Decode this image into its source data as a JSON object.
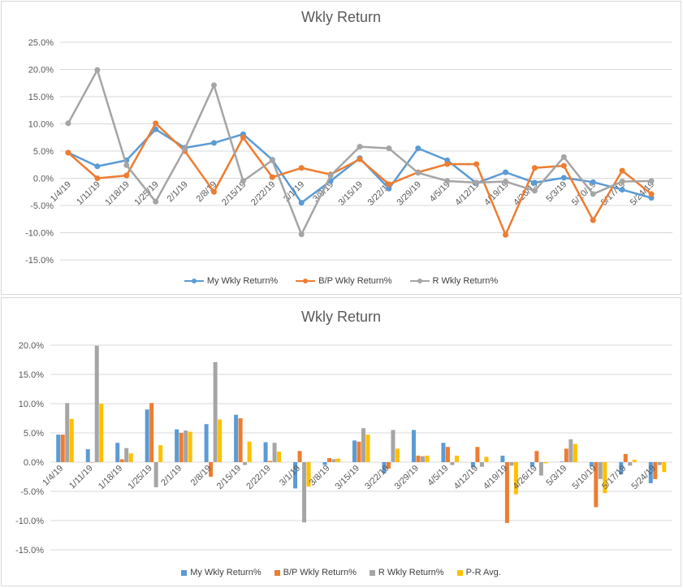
{
  "colors": {
    "my": "#5b9bd5",
    "bp": "#ed7d31",
    "r": "#a5a5a5",
    "pr": "#ffc000",
    "grid": "#d9d9d9",
    "axisText": "#595959"
  },
  "chart_data": [
    {
      "type": "line",
      "title": "Wkly Return",
      "xlabel": "",
      "ylabel": "",
      "ylim": [
        -15,
        25
      ],
      "ytick_labels": [
        "25.0%",
        "20.0%",
        "15.0%",
        "10.0%",
        "5.0%",
        "0.0%",
        "-5.0%",
        "-10.0%",
        "-15.0%"
      ],
      "grid": true,
      "legend_position": "bottom",
      "categories": [
        "1/4/19",
        "1/11/19",
        "1/18/19",
        "1/25/19",
        "2/1/19",
        "2/8/19",
        "2/15/19",
        "2/22/19",
        "3/1/19",
        "3/8/19",
        "3/15/19",
        "3/22/19",
        "3/29/19",
        "4/5/19",
        "4/12/19",
        "4/19/19",
        "4/26/19",
        "5/3/19",
        "5/10/19",
        "5/17/19",
        "5/24/19"
      ],
      "series": [
        {
          "name": "My Wkly Return%",
          "color": "#5b9bd5",
          "values": [
            4.7,
            2.2,
            3.3,
            9.0,
            5.6,
            6.5,
            8.1,
            3.4,
            -4.5,
            -0.5,
            3.7,
            -1.9,
            5.5,
            3.3,
            -0.9,
            1.1,
            -0.8,
            0.1,
            -0.7,
            -2.1,
            -3.6
          ]
        },
        {
          "name": "B/P Wkly Return%",
          "color": "#ed7d31",
          "values": [
            4.7,
            0.0,
            0.5,
            10.1,
            5.0,
            -2.5,
            7.5,
            0.2,
            1.9,
            0.7,
            3.5,
            -1.1,
            1.1,
            2.6,
            2.6,
            -10.4,
            1.9,
            2.3,
            -7.7,
            1.4,
            -2.9
          ]
        },
        {
          "name": "R Wkly Return%",
          "color": "#a5a5a5",
          "values": [
            10.1,
            19.9,
            2.4,
            -4.3,
            5.4,
            17.1,
            -0.5,
            3.3,
            -10.3,
            0.5,
            5.8,
            5.5,
            1.0,
            -0.5,
            -0.8,
            -0.6,
            -2.3,
            3.9,
            -2.9,
            -0.6,
            -0.5
          ]
        }
      ]
    },
    {
      "type": "bar",
      "title": "Wkly Return",
      "xlabel": "",
      "ylabel": "",
      "ylim": [
        -15,
        20
      ],
      "ytick_labels": [
        "20.0%",
        "15.0%",
        "10.0%",
        "5.0%",
        "0.0%",
        "-5.0%",
        "-10.0%",
        "-15.0%"
      ],
      "grid": true,
      "legend_position": "bottom",
      "categories": [
        "1/4/19",
        "1/11/19",
        "1/18/19",
        "1/25/19",
        "2/1/19",
        "2/8/19",
        "2/15/19",
        "2/22/19",
        "3/1/19",
        "3/8/19",
        "3/15/19",
        "3/22/19",
        "3/29/19",
        "4/5/19",
        "4/12/19",
        "4/19/19",
        "4/26/19",
        "5/3/19",
        "5/10/19",
        "5/17/19",
        "5/24/19"
      ],
      "series": [
        {
          "name": "My Wkly Return%",
          "color": "#5b9bd5",
          "values": [
            4.7,
            2.2,
            3.3,
            9.0,
            5.6,
            6.5,
            8.1,
            3.4,
            -4.5,
            -0.5,
            3.7,
            -1.9,
            5.5,
            3.3,
            -0.9,
            1.1,
            -0.8,
            0.1,
            -0.7,
            -2.1,
            -3.6
          ]
        },
        {
          "name": "B/P Wkly Return%",
          "color": "#ed7d31",
          "values": [
            4.7,
            0.0,
            0.5,
            10.1,
            5.0,
            -2.5,
            7.5,
            0.2,
            1.9,
            0.7,
            3.5,
            -1.1,
            1.1,
            2.6,
            2.6,
            -10.4,
            1.9,
            2.3,
            -7.7,
            1.4,
            -2.9
          ]
        },
        {
          "name": "R Wkly Return%",
          "color": "#a5a5a5",
          "values": [
            10.1,
            19.9,
            2.4,
            -4.3,
            5.4,
            17.1,
            -0.5,
            3.3,
            -10.3,
            0.5,
            5.8,
            5.5,
            1.0,
            -0.5,
            -0.8,
            -0.6,
            -2.3,
            3.9,
            -2.9,
            -0.6,
            -0.5
          ]
        },
        {
          "name": "P-R Avg.",
          "color": "#ffc000",
          "values": [
            7.4,
            10.0,
            1.5,
            2.9,
            5.2,
            7.3,
            3.5,
            1.8,
            -4.2,
            0.6,
            4.7,
            2.3,
            1.1,
            1.1,
            0.9,
            -5.5,
            -0.2,
            3.1,
            -5.3,
            0.4,
            -1.7
          ]
        }
      ]
    }
  ]
}
